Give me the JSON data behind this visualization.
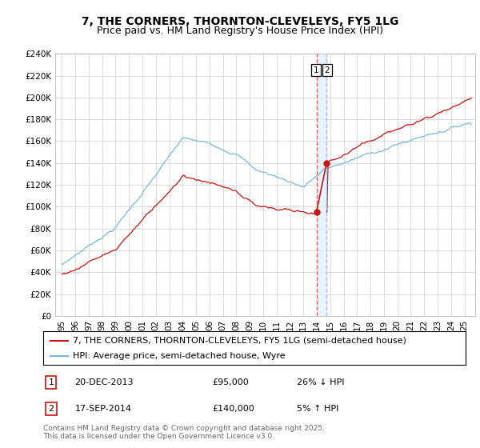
{
  "title": "7, THE CORNERS, THORNTON-CLEVELEYS, FY5 1LG",
  "subtitle": "Price paid vs. HM Land Registry's House Price Index (HPI)",
  "ylim": [
    0,
    240000
  ],
  "yticks": [
    0,
    20000,
    40000,
    60000,
    80000,
    100000,
    120000,
    140000,
    160000,
    180000,
    200000,
    220000,
    240000
  ],
  "ytick_labels": [
    "£0",
    "£20K",
    "£40K",
    "£60K",
    "£80K",
    "£100K",
    "£120K",
    "£140K",
    "£160K",
    "£180K",
    "£200K",
    "£220K",
    "£240K"
  ],
  "hpi_color": "#7ab8d9",
  "price_color": "#cc1111",
  "vline1_color": "#dd6666",
  "vline2_color": "#aabbdd",
  "shade_color": "#ddeeff",
  "background_color": "#ffffff",
  "grid_color": "#cccccc",
  "sale1_date_num": 2013.97,
  "sale2_date_num": 2014.72,
  "sale1_price": 95000,
  "sale2_price": 140000,
  "legend_label1": "7, THE CORNERS, THORNTON-CLEVELEYS, FY5 1LG (semi-detached house)",
  "legend_label2": "HPI: Average price, semi-detached house, Wyre",
  "footnote": "Contains HM Land Registry data © Crown copyright and database right 2025.\nThis data is licensed under the Open Government Licence v3.0.",
  "title_fontsize": 10,
  "subtitle_fontsize": 9,
  "tick_fontsize": 7.5,
  "legend_fontsize": 8,
  "annotation_fontsize": 8,
  "footnote_fontsize": 6.5,
  "xstart": 1995,
  "xend": 2025
}
